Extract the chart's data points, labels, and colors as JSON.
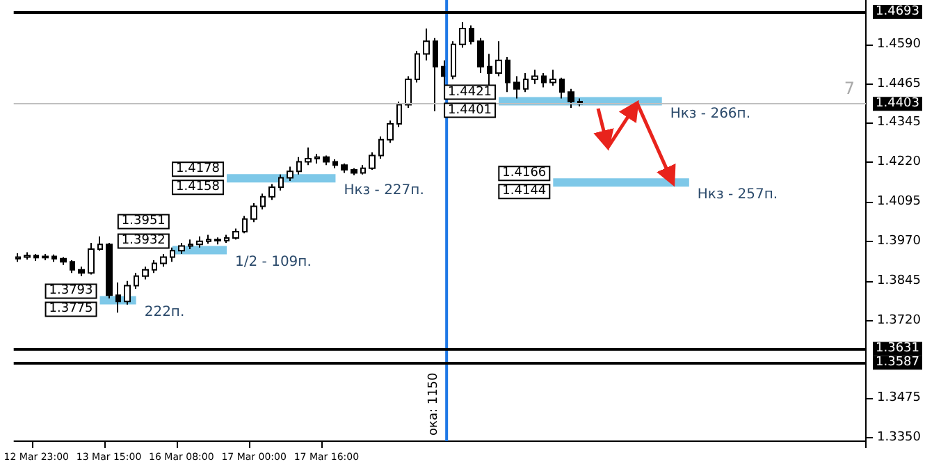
{
  "chart_data": {
    "type": "candlestick",
    "categories": [
      null,
      null,
      "12 Mar 23:00",
      null,
      null,
      null,
      null,
      null,
      null,
      null,
      "13 Mar 15:00",
      null,
      null,
      null,
      null,
      null,
      null,
      null,
      "16 Mar 08:00",
      null,
      null,
      null,
      null,
      null,
      null,
      null,
      "17 Mar 00:00",
      null,
      null,
      null,
      null,
      null,
      null,
      null,
      "17 Mar 16:00",
      null,
      null,
      null,
      null,
      null,
      null,
      null,
      null,
      null,
      null,
      null,
      null,
      null,
      null,
      null,
      null,
      null,
      null,
      null,
      null,
      null,
      null,
      null,
      null,
      null,
      null,
      null,
      null,
      null,
      null,
      null,
      null,
      null,
      null,
      null,
      null,
      null,
      null,
      null,
      null,
      null,
      null,
      null,
      null,
      null,
      null,
      null,
      null,
      null,
      null,
      null,
      null,
      null,
      null,
      null,
      null,
      null,
      null,
      null
    ],
    "color": "#000000",
    "ohlc": [
      [
        1.3915,
        1.3932,
        1.3905,
        1.392
      ],
      [
        1.392,
        1.3935,
        1.3912,
        1.3925
      ],
      [
        1.3925,
        1.393,
        1.3908,
        1.3918
      ],
      [
        1.3918,
        1.393,
        1.391,
        1.3922
      ],
      [
        1.3922,
        1.3928,
        1.3905,
        1.3915
      ],
      [
        1.3915,
        1.392,
        1.3895,
        1.3905
      ],
      [
        1.3905,
        1.391,
        1.387,
        1.388
      ],
      [
        1.388,
        1.389,
        1.386,
        1.387
      ],
      [
        1.387,
        1.3965,
        1.3865,
        1.3945
      ],
      [
        1.3945,
        1.3985,
        1.394,
        1.396
      ],
      [
        1.396,
        1.3965,
        1.379,
        1.38
      ],
      [
        1.38,
        1.384,
        1.3745,
        1.378
      ],
      [
        1.378,
        1.3845,
        1.377,
        1.383
      ],
      [
        1.383,
        1.387,
        1.382,
        1.386
      ],
      [
        1.386,
        1.389,
        1.385,
        1.388
      ],
      [
        1.388,
        1.391,
        1.387,
        1.39
      ],
      [
        1.39,
        1.393,
        1.389,
        1.392
      ],
      [
        1.392,
        1.395,
        1.3905,
        1.394
      ],
      [
        1.394,
        1.3965,
        1.393,
        1.3955
      ],
      [
        1.3955,
        1.3975,
        1.3945,
        1.396
      ],
      [
        1.396,
        1.3985,
        1.395,
        1.397
      ],
      [
        1.397,
        1.399,
        1.3962,
        1.3975
      ],
      [
        1.3975,
        1.3982,
        1.396,
        1.3972
      ],
      [
        1.3972,
        1.399,
        1.3965,
        1.398
      ],
      [
        1.398,
        1.401,
        1.3975,
        1.4
      ],
      [
        1.4,
        1.405,
        1.3995,
        1.404
      ],
      [
        1.404,
        1.409,
        1.403,
        1.408
      ],
      [
        1.408,
        1.412,
        1.407,
        1.411
      ],
      [
        1.411,
        1.415,
        1.41,
        1.414
      ],
      [
        1.414,
        1.418,
        1.413,
        1.417
      ],
      [
        1.417,
        1.4205,
        1.416,
        1.419
      ],
      [
        1.419,
        1.4235,
        1.418,
        1.422
      ],
      [
        1.422,
        1.4265,
        1.421,
        1.423
      ],
      [
        1.423,
        1.4245,
        1.4215,
        1.4235
      ],
      [
        1.4235,
        1.424,
        1.421,
        1.422
      ],
      [
        1.422,
        1.4228,
        1.42,
        1.421
      ],
      [
        1.421,
        1.4215,
        1.4185,
        1.4195
      ],
      [
        1.4195,
        1.42,
        1.4178,
        1.4185
      ],
      [
        1.4185,
        1.421,
        1.418,
        1.42
      ],
      [
        1.42,
        1.425,
        1.4195,
        1.424
      ],
      [
        1.424,
        1.43,
        1.423,
        1.429
      ],
      [
        1.429,
        1.435,
        1.428,
        1.434
      ],
      [
        1.434,
        1.441,
        1.433,
        1.44
      ],
      [
        1.44,
        1.449,
        1.439,
        1.448
      ],
      [
        1.448,
        1.457,
        1.447,
        1.456
      ],
      [
        1.456,
        1.464,
        1.454,
        1.46
      ],
      [
        1.46,
        1.461,
        1.438,
        1.452
      ],
      [
        1.452,
        1.454,
        1.445,
        1.449
      ],
      [
        1.449,
        1.46,
        1.448,
        1.459
      ],
      [
        1.459,
        1.466,
        1.458,
        1.464
      ],
      [
        1.464,
        1.465,
        1.459,
        1.46
      ],
      [
        1.46,
        1.461,
        1.45,
        1.452
      ],
      [
        1.452,
        1.456,
        1.446,
        1.45
      ],
      [
        1.45,
        1.46,
        1.449,
        1.454
      ],
      [
        1.454,
        1.455,
        1.444,
        1.447
      ],
      [
        1.447,
        1.449,
        1.442,
        1.445
      ],
      [
        1.445,
        1.45,
        1.444,
        1.448
      ],
      [
        1.448,
        1.451,
        1.4465,
        1.449
      ],
      [
        1.449,
        1.45,
        1.4455,
        1.447
      ],
      [
        1.447,
        1.451,
        1.446,
        1.448
      ],
      [
        1.448,
        1.4485,
        1.442,
        1.444
      ],
      [
        1.444,
        1.445,
        1.439,
        1.441
      ],
      [
        1.441,
        1.442,
        1.4395,
        1.4403
      ],
      null,
      null,
      null,
      null,
      null,
      null,
      null,
      null,
      null,
      null,
      null,
      null,
      null,
      null,
      null,
      null,
      null,
      null,
      null,
      null,
      null,
      null,
      null,
      null,
      null,
      null,
      null,
      null,
      null,
      null,
      null
    ],
    "series": [
      {
        "type": "line",
        "name": "222п.",
        "color": "#7ec8e8",
        "values": [
          null,
          null,
          null,
          null,
          null,
          null,
          null,
          null,
          null,
          1.3784,
          1.3784,
          1.3784,
          1.3784,
          1.3784,
          null,
          null,
          null,
          null,
          null,
          null,
          null,
          null,
          null,
          null,
          null,
          null,
          null,
          null,
          null,
          null,
          null,
          null,
          null,
          null,
          null,
          null,
          null,
          null,
          null,
          null,
          null,
          null,
          null,
          null,
          null,
          null,
          null,
          null,
          null,
          null,
          null,
          null,
          null,
          null,
          null,
          null,
          null,
          null,
          null,
          null,
          null,
          null,
          null,
          null,
          null,
          null,
          null,
          null,
          null,
          null,
          null,
          null,
          null,
          null,
          null,
          null,
          null,
          null,
          null,
          null,
          null,
          null,
          null,
          null,
          null,
          null,
          null,
          null,
          null,
          null,
          null,
          null,
          null,
          null
        ]
      },
      {
        "type": "line",
        "name": "1/2 - 109п.",
        "color": "#7ec8e8",
        "values": [
          null,
          null,
          null,
          null,
          null,
          null,
          null,
          null,
          null,
          null,
          null,
          null,
          null,
          null,
          null,
          null,
          null,
          1.3942,
          1.3942,
          1.3942,
          1.3942,
          1.3942,
          1.3942,
          1.3942,
          null,
          null,
          null,
          null,
          null,
          null,
          null,
          null,
          null,
          null,
          null,
          null,
          null,
          null,
          null,
          null,
          null,
          null,
          null,
          null,
          null,
          null,
          null,
          null,
          null,
          null,
          null,
          null,
          null,
          null,
          null,
          null,
          null,
          null,
          null,
          null,
          null,
          null,
          null,
          null,
          null,
          null,
          null,
          null,
          null,
          null,
          null,
          null,
          null,
          null,
          null,
          null,
          null,
          null,
          null,
          null,
          null,
          null,
          null,
          null,
          null,
          null,
          null,
          null,
          null,
          null,
          null,
          null,
          null,
          null
        ]
      },
      {
        "type": "line",
        "name": "Нкз - 227п.",
        "color": "#7ec8e8",
        "values": [
          null,
          null,
          null,
          null,
          null,
          null,
          null,
          null,
          null,
          null,
          null,
          null,
          null,
          null,
          null,
          null,
          null,
          null,
          null,
          null,
          null,
          null,
          null,
          1.4168,
          1.4168,
          1.4168,
          1.4168,
          1.4168,
          1.4168,
          1.4168,
          1.4168,
          1.4168,
          1.4168,
          1.4168,
          1.4168,
          1.4168,
          null,
          null,
          null,
          null,
          null,
          null,
          null,
          null,
          null,
          null,
          null,
          null,
          null,
          null,
          null,
          null,
          null,
          null,
          null,
          null,
          null,
          null,
          null,
          null,
          null,
          null,
          null,
          null,
          null,
          null,
          null,
          null,
          null,
          null,
          null,
          null,
          null,
          null,
          null,
          null,
          null,
          null,
          null,
          null,
          null,
          null,
          null,
          null,
          null,
          null,
          null,
          null,
          null,
          null,
          null,
          null,
          null,
          null
        ]
      },
      {
        "type": "line",
        "name": "Нкз - 266п.",
        "color": "#7ec8e8",
        "values": [
          null,
          null,
          null,
          null,
          null,
          null,
          null,
          null,
          null,
          null,
          null,
          null,
          null,
          null,
          null,
          null,
          null,
          null,
          null,
          null,
          null,
          null,
          null,
          null,
          null,
          null,
          null,
          null,
          null,
          null,
          null,
          null,
          null,
          null,
          null,
          null,
          null,
          null,
          null,
          null,
          null,
          null,
          null,
          null,
          null,
          null,
          null,
          null,
          null,
          null,
          null,
          null,
          null,
          1.4411,
          1.4411,
          1.4411,
          1.4411,
          1.4411,
          1.4411,
          1.4411,
          1.4411,
          1.4411,
          1.4411,
          1.4411,
          1.4411,
          1.4411,
          1.4411,
          1.4411,
          1.4411,
          1.4411,
          1.4411,
          1.4411,
          null,
          null,
          null,
          null,
          null,
          null,
          null,
          null,
          null,
          null,
          null,
          null,
          null,
          null,
          null,
          null,
          null,
          null,
          null,
          null,
          null,
          null
        ]
      },
      {
        "type": "line",
        "name": "Нкз - 257п.",
        "color": "#7ec8e8",
        "values": [
          null,
          null,
          null,
          null,
          null,
          null,
          null,
          null,
          null,
          null,
          null,
          null,
          null,
          null,
          null,
          null,
          null,
          null,
          null,
          null,
          null,
          null,
          null,
          null,
          null,
          null,
          null,
          null,
          null,
          null,
          null,
          null,
          null,
          null,
          null,
          null,
          null,
          null,
          null,
          null,
          null,
          null,
          null,
          null,
          null,
          null,
          null,
          null,
          null,
          null,
          null,
          null,
          null,
          null,
          null,
          null,
          null,
          null,
          null,
          1.4155,
          1.4155,
          1.4155,
          1.4155,
          1.4155,
          1.4155,
          1.4155,
          1.4155,
          1.4155,
          1.4155,
          1.4155,
          1.4155,
          1.4155,
          1.4155,
          1.4155,
          1.4155,
          null,
          null,
          null,
          null,
          null,
          null,
          null,
          null,
          null,
          null,
          null,
          null,
          null,
          null,
          null,
          null,
          null,
          null,
          null
        ]
      }
    ],
    "ylim": [
      1.334,
      1.473
    ],
    "yticks": [
      {
        "value": 1.335,
        "label": "1.3350"
      },
      {
        "value": 1.3475,
        "label": "1.3475"
      },
      {
        "value": 1.372,
        "label": "1.3720"
      },
      {
        "value": 1.3845,
        "label": "1.3845"
      },
      {
        "value": 1.397,
        "label": "1.3970"
      },
      {
        "value": 1.4095,
        "label": "1.4095"
      },
      {
        "value": 1.422,
        "label": "1.4220"
      },
      {
        "value": 1.4345,
        "label": "1.4345"
      },
      {
        "value": 1.4465,
        "label": "1.4465"
      },
      {
        "value": 1.459,
        "label": "1.4590"
      }
    ],
    "ref_lines": [
      {
        "axis": "y",
        "value": 1.4693,
        "label": "1.4693",
        "color": "#000000"
      },
      {
        "axis": "y",
        "value": 1.3631,
        "label": "1.3631",
        "color": "#000000"
      },
      {
        "axis": "y",
        "value": 1.3587,
        "label": "1.3587",
        "color": "#000000"
      },
      {
        "axis": "y",
        "value": 1.4403,
        "label": "1.4403",
        "color": "#c0c0c0"
      }
    ],
    "annotations": [
      "1.3793",
      "1.3775",
      "1.3951",
      "1.3932",
      "1.4178",
      "1.4158",
      "1.4421",
      "1.4401",
      "1.4166",
      "1.4144",
      "7",
      "ока: 1150"
    ],
    "grid": false,
    "legend": false
  }
}
